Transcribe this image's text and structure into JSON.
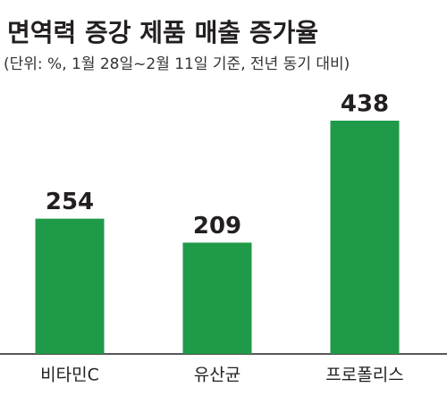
{
  "chart_data": {
    "type": "bar",
    "title": "면역력 증강 제품 매출 증가율",
    "subtitle": "(단위: %, 1월 28일~2월 11일 기준, 전년 동기 대비)",
    "categories": [
      "비타민C",
      "유산균",
      "프로폴리스"
    ],
    "values": [
      254,
      209,
      438
    ],
    "color": "#1f9a48"
  }
}
